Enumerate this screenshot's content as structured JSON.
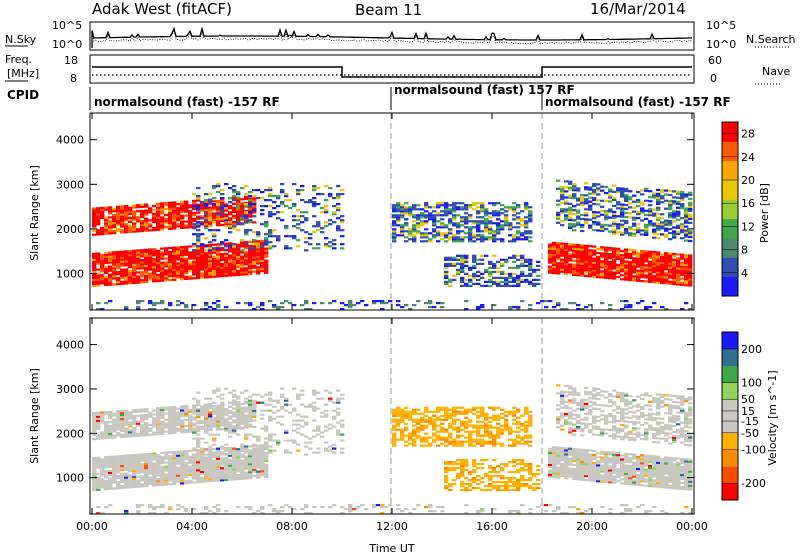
{
  "header": {
    "station": "Adak West (fitACF)",
    "beam": "Beam 11",
    "date": "16/Mar/2014"
  },
  "noise_panel": {
    "left_label": "N.Sky",
    "right_label": "N.Search",
    "y_ticks": [
      "10^5",
      "10^0"
    ],
    "right_y_ticks": [
      "10^5",
      "10^0"
    ]
  },
  "freq_panel": {
    "left_label_1": "Freq.",
    "left_label_2": "[MHz]",
    "left_ticks": [
      "18",
      "8"
    ],
    "right_label": "Nave",
    "right_ticks": [
      "60",
      "0"
    ],
    "freq_levels": [
      {
        "from": "00:00",
        "to": "10:00",
        "mhz": 15
      },
      {
        "from": "10:00",
        "to": "18:00",
        "mhz": 10
      },
      {
        "from": "18:00",
        "to": "24:00",
        "mhz": 15
      }
    ]
  },
  "cpid_panel": {
    "label": "CPID",
    "segments": [
      {
        "text": "normalsound (fast) -157 RF",
        "from": 0,
        "to": 12
      },
      {
        "text": "normalsound (fast) 157 RF",
        "from": 12,
        "to": 18
      },
      {
        "text": "normalsound (fast) -157 RF",
        "from": 18,
        "to": 24
      }
    ]
  },
  "colors": {
    "power_scale": [
      "#1a1aff",
      "#2f4fb0",
      "#4a8a6a",
      "#3fa84a",
      "#9acd32",
      "#e8c800",
      "#ffa500",
      "#ff5a00",
      "#ff0000"
    ],
    "velocity_scale": [
      "#ff0000",
      "#ff4a00",
      "#ff8c00",
      "#ffb000",
      "#c8c8c0",
      "#c8c8c0",
      "#8fd35a",
      "#3fa84a",
      "#2f6f8f",
      "#1a1aff"
    ],
    "ground_scatter": "#c8c8c0"
  },
  "chart_data": [
    {
      "type": "heatmap",
      "title": "",
      "xlabel": "Time UT",
      "ylabel": "Slant Range [km]",
      "x_ticks": [
        "00:00",
        "04:00",
        "08:00",
        "12:00",
        "16:00",
        "20:00",
        "00:00"
      ],
      "xlim_hours": [
        0,
        24
      ],
      "ylim_km": [
        180,
        4600
      ],
      "y_ticks": [
        "1000",
        "2000",
        "3000",
        "4000"
      ],
      "colorbar_label": "Power [dB]",
      "colorbar_ticks": [
        "4",
        "8",
        "12",
        "16",
        "20",
        "24",
        "28"
      ],
      "colorbar_range": [
        0,
        30
      ]
    },
    {
      "type": "heatmap",
      "title": "",
      "xlabel": "Time UT",
      "ylabel": "Slant Range [km]",
      "x_ticks": [
        "00:00",
        "04:00",
        "08:00",
        "12:00",
        "16:00",
        "20:00",
        "00:00"
      ],
      "xlim_hours": [
        0,
        24
      ],
      "ylim_km": [
        180,
        4600
      ],
      "y_ticks": [
        "1000",
        "2000",
        "3000",
        "4000"
      ],
      "colorbar_label": "Velocity [m s^-1]",
      "colorbar_ticks": [
        "-200",
        "-100",
        "-50",
        "-15",
        "15",
        "50",
        "100",
        "200"
      ],
      "colorbar_range": [
        -250,
        250
      ]
    }
  ]
}
